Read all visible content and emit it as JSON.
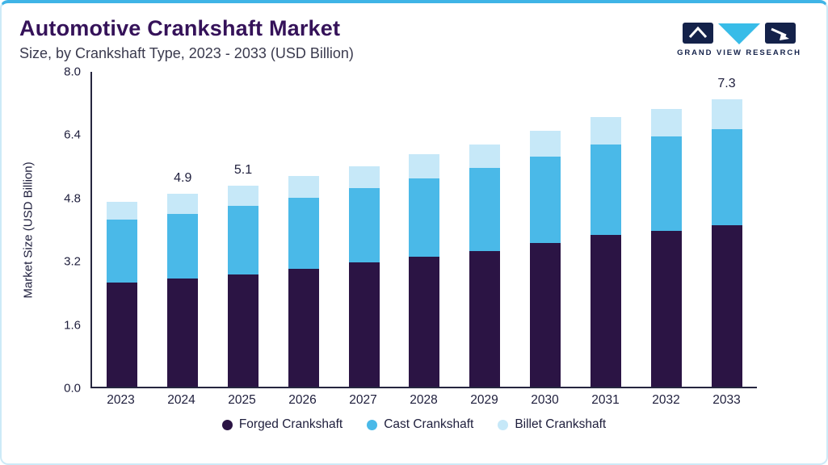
{
  "page": {
    "title": "Automotive Crankshaft Market",
    "subtitle": "Size, by Crankshaft Type, 2023 - 2033 (USD Billion)",
    "brand": "GRAND VIEW RESEARCH"
  },
  "colors": {
    "accent_top_border": "#3fb4e6",
    "card_border": "#cdeaf7",
    "title_text": "#351259",
    "axis_text": "#1e1e3c",
    "forged": "#2b1444",
    "cast": "#4ab9e8",
    "billet": "#c6e8f8",
    "logo_navy": "#14224a",
    "logo_cyan": "#38bce8"
  },
  "chart_data": {
    "type": "bar",
    "stacked": true,
    "title": "Automotive Crankshaft Market",
    "subtitle": "Size, by Crankshaft Type, 2023 - 2033 (USD Billion)",
    "xlabel": "",
    "ylabel": "Market Size (USD Billion)",
    "ylim": [
      0,
      8.0
    ],
    "yticks": [
      0.0,
      1.6,
      3.2,
      4.8,
      6.4,
      8.0
    ],
    "grid": false,
    "legend_position": "bottom",
    "categories": [
      "2023",
      "2024",
      "2025",
      "2026",
      "2027",
      "2028",
      "2029",
      "2030",
      "2031",
      "2032",
      "2033"
    ],
    "series": [
      {
        "name": "Forged Crankshaft",
        "color": "#2b1444",
        "values": [
          2.65,
          2.75,
          2.85,
          3.0,
          3.15,
          3.3,
          3.45,
          3.65,
          3.85,
          3.95,
          4.1
        ]
      },
      {
        "name": "Cast Crankshaft",
        "color": "#4ab9e8",
        "values": [
          1.6,
          1.65,
          1.75,
          1.8,
          1.9,
          2.0,
          2.1,
          2.2,
          2.3,
          2.4,
          2.45
        ]
      },
      {
        "name": "Billet Crankshaft",
        "color": "#c6e8f8",
        "values": [
          0.45,
          0.5,
          0.5,
          0.55,
          0.55,
          0.6,
          0.6,
          0.65,
          0.7,
          0.7,
          0.75
        ]
      }
    ],
    "totals": [
      4.7,
      4.9,
      5.1,
      5.35,
      5.6,
      5.9,
      6.15,
      6.5,
      6.85,
      7.05,
      7.3
    ],
    "total_labels": [
      "",
      "4.9",
      "5.1",
      "",
      "",
      "",
      "",
      "",
      "",
      "",
      "7.3"
    ]
  }
}
